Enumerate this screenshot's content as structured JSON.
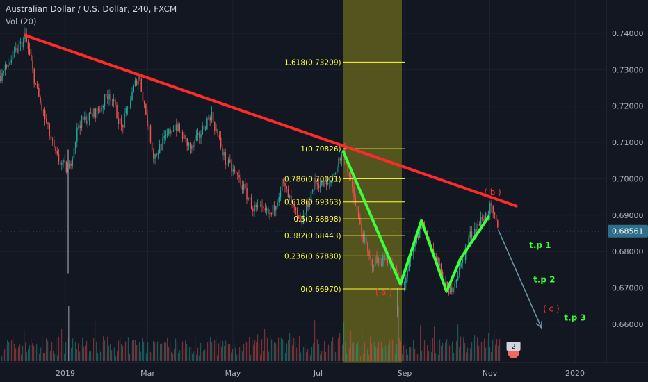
{
  "header": {
    "title": "Australian Dollar / U.S. Dollar, 240, FXCM",
    "volume_label": "Vol (20)"
  },
  "colors": {
    "background": "#131722",
    "grid": "#1e2230",
    "axis_text": "#b2b5be",
    "up_candle": "#26a69a",
    "down_candle": "#ef5350",
    "trendline": "#ff2a2a",
    "fib_line": "#ffff33",
    "fib_zone": "#6b6b1e",
    "zigzag": "#3cff3c",
    "projection": "#6a93a6",
    "wave_label": "#ff3030",
    "target_label": "#33ff33",
    "price_tag": "#2f6f89"
  },
  "chart_data": {
    "type": "candlestick",
    "symbol": "AUDUSD",
    "timeframe": "240",
    "y_axis": {
      "range": [
        0.6545,
        0.743
      ],
      "ticks": [
        "0.74000",
        "0.73000",
        "0.72000",
        "0.71000",
        "0.70000",
        "0.69000",
        "0.68000",
        "0.67000",
        "0.66000"
      ],
      "tick_values": [
        0.74,
        0.73,
        0.72,
        0.71,
        0.7,
        0.69,
        0.68,
        0.67,
        0.66
      ]
    },
    "x_axis": {
      "range": [
        "2018-11-01",
        "2020-02-29"
      ],
      "ticks": [
        {
          "label": "2019",
          "date": "2019-01-01"
        },
        {
          "label": "Mar",
          "date": "2019-03-01"
        },
        {
          "label": "May",
          "date": "2019-05-01"
        },
        {
          "label": "Jul",
          "date": "2019-07-01"
        },
        {
          "label": "Sep",
          "date": "2019-09-01"
        },
        {
          "label": "Nov",
          "date": "2019-11-01"
        },
        {
          "label": "2020",
          "date": "2020-01-01"
        }
      ]
    },
    "current_price": "0.68561",
    "current_price_value": 0.68561,
    "price_path": [
      [
        "2018-11-01",
        0.72
      ],
      [
        "2018-11-15",
        0.728
      ],
      [
        "2018-12-03",
        0.739
      ],
      [
        "2018-12-12",
        0.723
      ],
      [
        "2018-12-25",
        0.706
      ],
      [
        "2019-01-03",
        0.702
      ],
      [
        "2019-01-10",
        0.715
      ],
      [
        "2019-01-25",
        0.719
      ],
      [
        "2019-02-01",
        0.724
      ],
      [
        "2019-02-10",
        0.714
      ],
      [
        "2019-02-22",
        0.729
      ],
      [
        "2019-03-05",
        0.706
      ],
      [
        "2019-03-20",
        0.715
      ],
      [
        "2019-04-01",
        0.708
      ],
      [
        "2019-04-15",
        0.718
      ],
      [
        "2019-04-25",
        0.705
      ],
      [
        "2019-05-05",
        0.7
      ],
      [
        "2019-05-15",
        0.692
      ],
      [
        "2019-05-28",
        0.69
      ],
      [
        "2019-06-05",
        0.699
      ],
      [
        "2019-06-18",
        0.687
      ],
      [
        "2019-06-28",
        0.699
      ],
      [
        "2019-07-08",
        0.698
      ],
      [
        "2019-07-19",
        0.708
      ],
      [
        "2019-07-30",
        0.688
      ],
      [
        "2019-08-07",
        0.677
      ],
      [
        "2019-08-20",
        0.678
      ],
      [
        "2019-08-30",
        0.67
      ],
      [
        "2019-09-13",
        0.688
      ],
      [
        "2019-09-24",
        0.677
      ],
      [
        "2019-10-02",
        0.668
      ],
      [
        "2019-10-10",
        0.675
      ],
      [
        "2019-10-17",
        0.684
      ],
      [
        "2019-11-01",
        0.692
      ],
      [
        "2019-11-07",
        0.6856
      ]
    ],
    "wicks": [
      {
        "date": "2019-01-03",
        "low": 0.674,
        "high": 0.708
      },
      {
        "date": "2019-08-27",
        "low": 0.662,
        "high": 0.67
      }
    ],
    "trendline": {
      "from": [
        "2018-12-03",
        0.7395
      ],
      "to": [
        "2019-11-20",
        0.6925
      ]
    },
    "fibonacci": {
      "zone": {
        "from": "2019-07-19",
        "to": "2019-08-30"
      },
      "line_end": "2019-09-01",
      "levels": [
        {
          "label": "1.618(0.73209)",
          "value": 0.73209
        },
        {
          "label": "1(0.70826)",
          "value": 0.70826
        },
        {
          "label": "0.786(0.70001)",
          "value": 0.70001
        },
        {
          "label": "0.618(0.69363)",
          "value": 0.69363
        },
        {
          "label": "0.5(0.68898)",
          "value": 0.68898
        },
        {
          "label": "0.382(0.68443)",
          "value": 0.68443
        },
        {
          "label": "0.236(0.67880)",
          "value": 0.6788
        },
        {
          "label": "0(0.66970)",
          "value": 0.6697
        }
      ]
    },
    "zigzag": [
      [
        "2019-07-19",
        0.7075
      ],
      [
        "2019-08-29",
        0.671
      ],
      [
        "2019-09-13",
        0.6885
      ],
      [
        "2019-10-01",
        0.669
      ],
      [
        "2019-10-11",
        0.678
      ],
      [
        "2019-10-31",
        0.6895
      ]
    ],
    "projection": [
      [
        "2019-11-07",
        0.686
      ],
      [
        "2019-12-08",
        0.659
      ]
    ],
    "annotations": [
      {
        "text": "( a )",
        "date": "2019-08-17",
        "value": 0.668,
        "kind": "wave"
      },
      {
        "text": "( b )",
        "date": "2019-11-03",
        "value": 0.6955,
        "kind": "wave"
      },
      {
        "text": "( c )",
        "date": "2019-12-15",
        "value": 0.6635,
        "kind": "wave"
      },
      {
        "text": "t.p 1",
        "date": "2019-12-07",
        "value": 0.681,
        "kind": "target"
      },
      {
        "text": "t.p 2",
        "date": "2019-12-10",
        "value": 0.6715,
        "kind": "target"
      },
      {
        "text": "t.p 3",
        "date": "2020-01-01",
        "value": 0.661,
        "kind": "target"
      }
    ],
    "volume": {
      "baseline_fraction": 0.04,
      "peak_fraction": 0.2,
      "spike_dates": [
        "2019-01-03",
        "2019-08-27"
      ]
    },
    "badge_count": "2"
  }
}
